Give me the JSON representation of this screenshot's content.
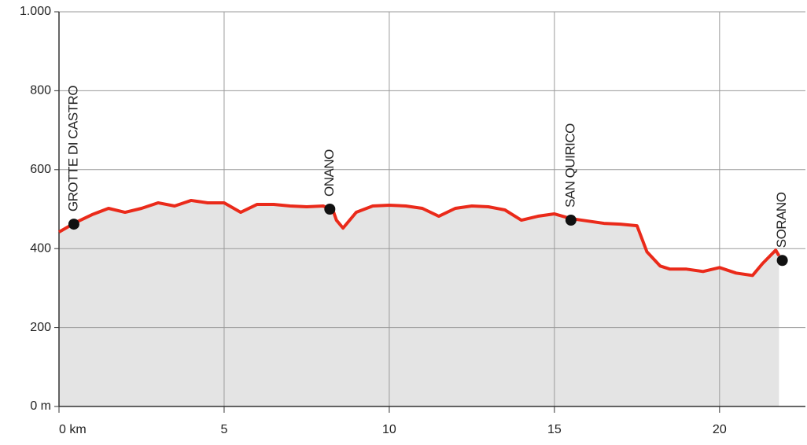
{
  "chart_data": {
    "type": "area-line",
    "x": [
      0,
      0.5,
      1,
      1.5,
      2,
      2.5,
      3,
      3.5,
      4,
      4.5,
      5,
      5.5,
      6,
      6.5,
      7,
      7.5,
      8,
      8.3,
      8.4,
      8.6,
      9,
      9.5,
      10,
      10.5,
      11,
      11.5,
      12,
      12.5,
      13,
      13.5,
      14,
      14.5,
      15,
      15.5,
      16,
      16.5,
      17,
      17.5,
      17.8,
      18.2,
      18.5,
      19,
      19.5,
      20,
      20.5,
      21,
      21.3,
      21.7,
      21.8
    ],
    "series": [
      {
        "color": "#ea2a1a",
        "fill": "#e4e4e4",
        "values": [
          442,
          466,
          486,
          502,
          492,
          502,
          516,
          508,
          522,
          516,
          516,
          492,
          512,
          512,
          508,
          506,
          508,
          496,
          472,
          452,
          492,
          508,
          510,
          508,
          502,
          482,
          502,
          508,
          506,
          498,
          472,
          482,
          488,
          476,
          470,
          464,
          462,
          458,
          392,
          356,
          348,
          348,
          342,
          352,
          338,
          332,
          362,
          396,
          382
        ]
      }
    ],
    "annotations": [
      {
        "label": "GROTTE DI CASTRO",
        "x": 0.45,
        "y": 462
      },
      {
        "label": "ONANO",
        "x": 8.2,
        "y": 500
      },
      {
        "label": "SAN QUIRICO",
        "x": 15.5,
        "y": 472
      },
      {
        "label": "SORANO",
        "x": 21.9,
        "y": 370
      }
    ],
    "marker_color": "#111111",
    "xlim": [
      0,
      22.6
    ],
    "ylim": [
      0,
      1000
    ],
    "xticks": [
      {
        "value": 0,
        "label": "0 km"
      },
      5,
      10,
      15,
      20
    ],
    "yticks": [
      {
        "value": 0,
        "label": "0 m"
      },
      200,
      400,
      600,
      800,
      {
        "value": 1000,
        "label": "1.000"
      }
    ],
    "grid": true
  }
}
